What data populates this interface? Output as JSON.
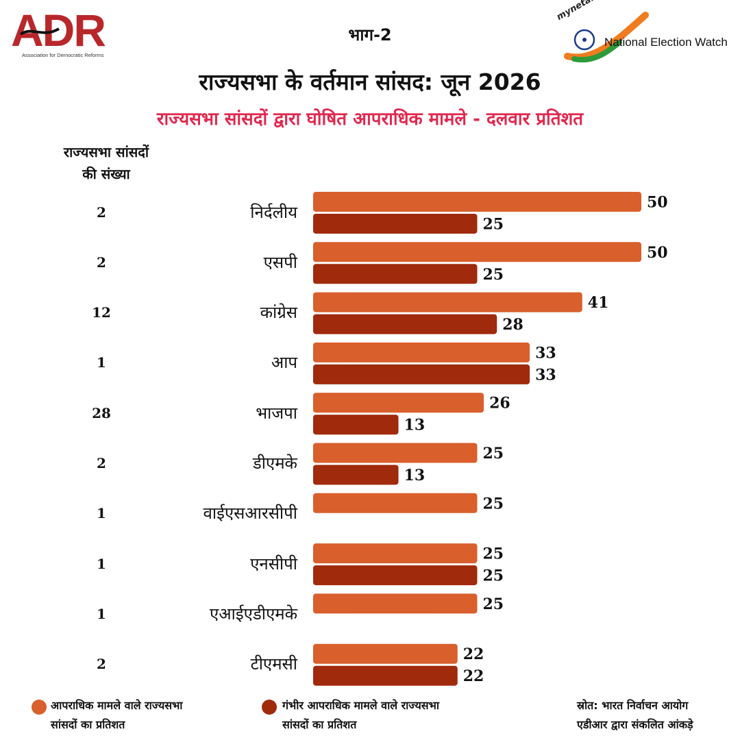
{
  "header": {
    "adr_logo_text": "ADR",
    "adr_logo_subtitle": "Association for Democratic Reforms",
    "part_label": "भाग-2",
    "myneta_text": "myneta.info",
    "new_text": "National Election Watch",
    "title": "राज्यसभा के वर्तमान सांसद: जून 2026",
    "subtitle": "राज्यसभा सांसदों द्वारा घोषित आपराधिक मामले - दलवार प्रतिशत"
  },
  "count_header": {
    "line1": "राज्यसभा सांसदों",
    "line2": "की संख्या"
  },
  "colors": {
    "criminal": "#d95f2c",
    "serious": "#a02a0c",
    "subtitle": "#e0284f",
    "adr_red": "#b8282b"
  },
  "chart_data": {
    "type": "bar",
    "orientation": "horizontal",
    "categories": [
      "निर्दलीय",
      "एसपी",
      "कांग्रेस",
      "आप",
      "भाजपा",
      "डीएमके",
      "वाईएसआरसीपी",
      "एनसीपी",
      "एआईएडीएमके",
      "टीएमसी"
    ],
    "member_counts": [
      "2",
      "2",
      "12",
      "1",
      "28",
      "2",
      "1",
      "1",
      "1",
      "2"
    ],
    "series": [
      {
        "name": "आपराधिक मामले वाले राज्यसभा सांसदों का प्रतिशत",
        "values": [
          50,
          50,
          41,
          33,
          26,
          25,
          25,
          25,
          25,
          22
        ]
      },
      {
        "name": "गंभीर आपराधिक मामले वाले राज्यसभा सांसदों का प्रतिशत",
        "values": [
          25,
          25,
          28,
          33,
          13,
          13,
          null,
          25,
          null,
          22
        ]
      }
    ],
    "xlim": [
      0,
      50
    ],
    "grid": false,
    "legend_position": "bottom"
  },
  "legend": {
    "criminal_line1": "आपराधिक मामले वाले राज्यसभा",
    "criminal_line2": "सांसदों का प्रतिशत",
    "serious_line1": "गंभीर आपराधिक मामले वाले राज्यसभा",
    "serious_line2": "सांसदों का प्रतिशत"
  },
  "source": {
    "line1": "स्रोत: भारत निर्वाचन आयोग",
    "line2": "एडीआर द्वारा संकलित आंकड़े"
  }
}
